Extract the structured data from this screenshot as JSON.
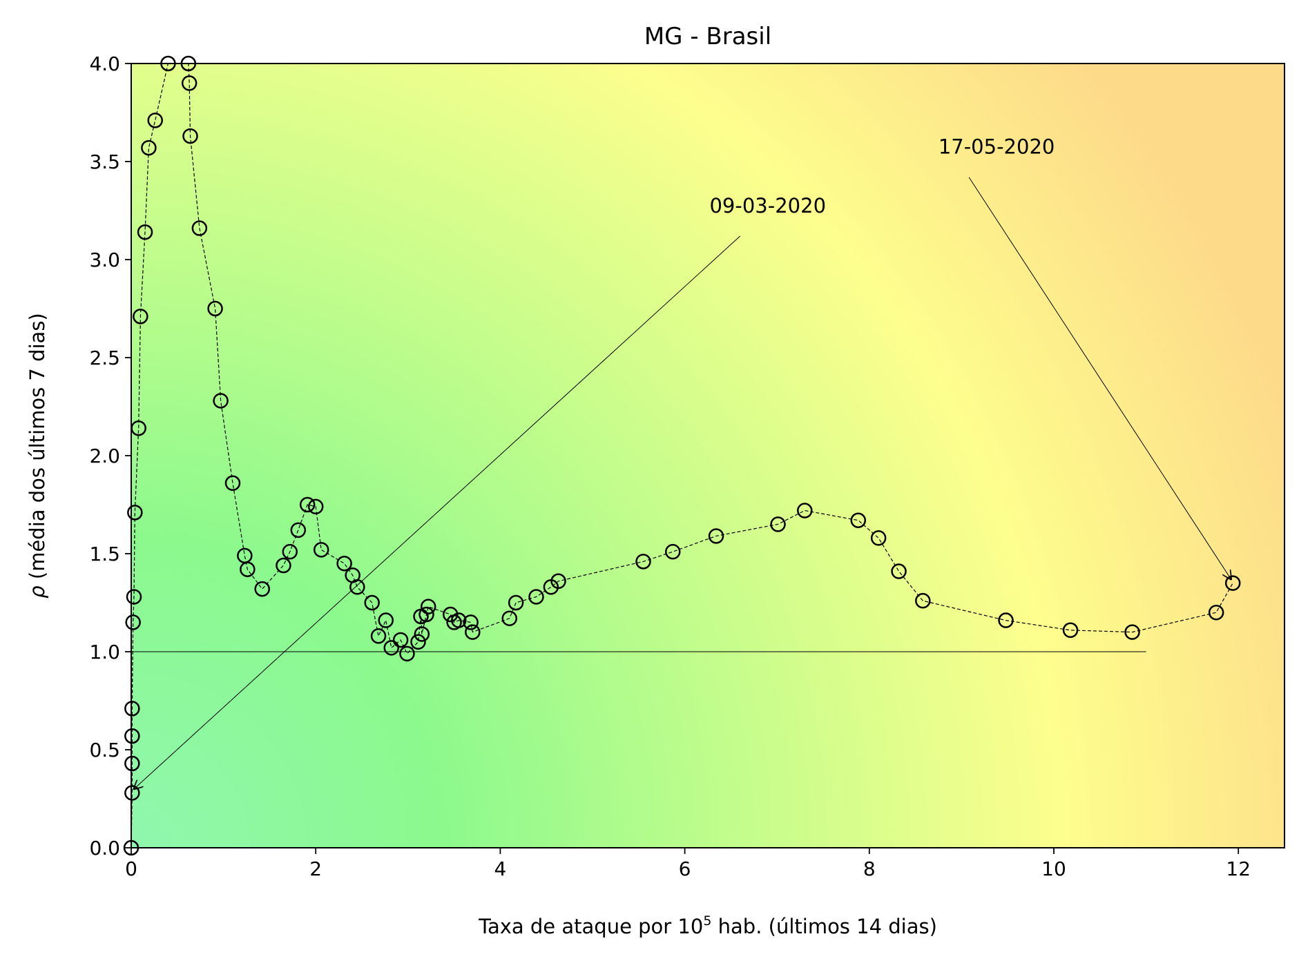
{
  "chart_data": {
    "type": "scatter",
    "title": "MG - Brasil",
    "xlabel": "Taxa de ataque por 10",
    "xlabel_superscript": "5",
    "xlabel_suffix": " hab. (últimos 14 dias)",
    "ylabel_symbol": "ρ",
    "ylabel": " (média dos últimos 7 dias)",
    "xlim": [
      0,
      12.5
    ],
    "ylim": [
      0,
      4.0
    ],
    "x_ticks": [
      "0",
      "2",
      "4",
      "6",
      "8",
      "10",
      "12"
    ],
    "y_ticks": [
      "0.0",
      "0.5",
      "1.0",
      "1.5",
      "2.0",
      "2.5",
      "3.0",
      "3.5",
      "4.0"
    ],
    "reference_line": {
      "y": 1.0,
      "x_from": 0,
      "x_to": 11.0
    },
    "series": [
      {
        "marker": "open-circle",
        "line": "dashed",
        "points": [
          [
            0.0,
            0.0
          ],
          [
            0.01,
            0.28
          ],
          [
            0.01,
            0.43
          ],
          [
            0.01,
            0.57
          ],
          [
            0.01,
            0.71
          ],
          [
            0.02,
            1.15
          ],
          [
            0.03,
            1.28
          ],
          [
            0.04,
            1.71
          ],
          [
            0.08,
            2.14
          ],
          [
            0.1,
            2.71
          ],
          [
            0.15,
            3.14
          ],
          [
            0.19,
            3.57
          ],
          [
            0.26,
            3.71
          ],
          [
            0.4,
            4.0
          ],
          [
            0.62,
            4.0
          ],
          [
            0.63,
            3.9
          ],
          [
            0.64,
            3.63
          ],
          [
            0.74,
            3.16
          ],
          [
            0.91,
            2.75
          ],
          [
            0.97,
            2.28
          ],
          [
            1.1,
            1.86
          ],
          [
            1.23,
            1.49
          ],
          [
            1.26,
            1.42
          ],
          [
            1.42,
            1.32
          ],
          [
            1.65,
            1.44
          ],
          [
            1.72,
            1.51
          ],
          [
            1.81,
            1.62
          ],
          [
            1.91,
            1.75
          ],
          [
            2.0,
            1.74
          ],
          [
            2.06,
            1.52
          ],
          [
            2.31,
            1.45
          ],
          [
            2.4,
            1.39
          ],
          [
            2.45,
            1.33
          ],
          [
            2.61,
            1.25
          ],
          [
            2.68,
            1.08
          ],
          [
            2.76,
            1.16
          ],
          [
            2.82,
            1.02
          ],
          [
            2.92,
            1.06
          ],
          [
            2.99,
            0.99
          ],
          [
            3.11,
            1.05
          ],
          [
            3.14,
            1.18
          ],
          [
            3.15,
            1.09
          ],
          [
            3.2,
            1.19
          ],
          [
            3.22,
            1.23
          ],
          [
            3.46,
            1.19
          ],
          [
            3.5,
            1.15
          ],
          [
            3.55,
            1.16
          ],
          [
            3.68,
            1.15
          ],
          [
            3.7,
            1.1
          ],
          [
            4.1,
            1.17
          ],
          [
            4.17,
            1.25
          ],
          [
            4.39,
            1.28
          ],
          [
            4.55,
            1.33
          ],
          [
            4.63,
            1.36
          ],
          [
            5.55,
            1.46
          ],
          [
            5.87,
            1.51
          ],
          [
            6.34,
            1.59
          ],
          [
            7.01,
            1.65
          ],
          [
            7.3,
            1.72
          ],
          [
            7.88,
            1.67
          ],
          [
            8.1,
            1.58
          ],
          [
            8.32,
            1.41
          ],
          [
            8.58,
            1.26
          ],
          [
            9.48,
            1.16
          ],
          [
            10.18,
            1.11
          ],
          [
            10.85,
            1.1
          ],
          [
            11.76,
            1.2
          ],
          [
            11.94,
            1.35
          ]
        ]
      }
    ],
    "annotations": [
      {
        "text": "09-03-2020",
        "point": [
          0.03,
          0.3
        ],
        "text_pos": [
          6.6,
          3.12
        ]
      },
      {
        "text": "17-05-2020",
        "point": [
          11.92,
          1.37
        ],
        "text_pos": [
          9.08,
          3.42
        ]
      }
    ],
    "background": {
      "type": "gradient",
      "colors": [
        "#8ff7a7",
        "#8cf98d",
        "#c5fd8c",
        "#fdfe8d",
        "#fdd98a"
      ]
    },
    "grid": false,
    "legend": "none"
  }
}
